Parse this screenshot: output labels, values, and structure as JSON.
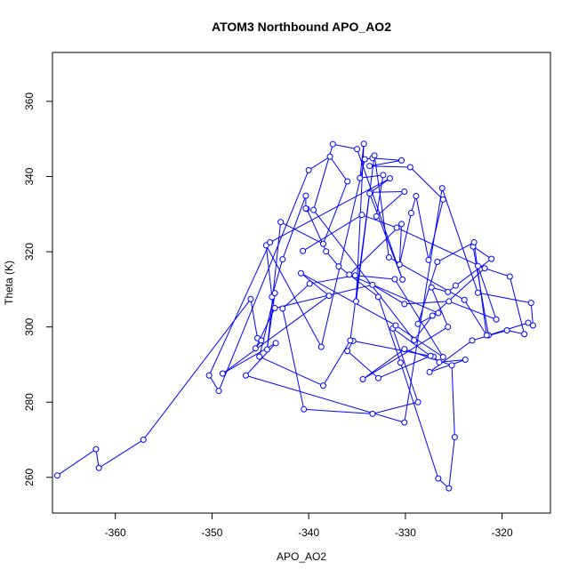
{
  "chart_data": {
    "type": "scatter",
    "title": "ATOM3 Northbound APO_AO2",
    "xlabel": "APO_AO2",
    "ylabel": "Theta (K)",
    "xlim": [
      -366.5,
      -315
    ],
    "ylim": [
      250.5,
      373
    ],
    "xticks": [
      -360,
      -350,
      -340,
      -330,
      -320
    ],
    "yticks": [
      260,
      280,
      300,
      320,
      340,
      360
    ],
    "connect_points": true,
    "grid": false,
    "color": "#0000ff",
    "series": [
      {
        "x": [
          -366,
          -362,
          -361.7,
          -357.1,
          -346,
          -345.3,
          -344.9,
          -345.5,
          -343.5,
          -333.4,
          -330.1,
          -325.5,
          -320.6,
          -322.5,
          -319.2,
          -317.7,
          -319.5,
          -323.1,
          -327.5,
          -323.8,
          -326.5,
          -327.1,
          -335.4,
          -336.0,
          -332.8,
          -327.4,
          -331.3,
          -328.7,
          -333.4,
          -340.5,
          -342.7,
          -339.9,
          -335.2,
          -331.1,
          -326.1,
          -331.0,
          -340.8,
          -337.9,
          -348.9,
          -343.4,
          -346.5,
          -330.1,
          -326.2,
          -322.5,
          -317.0,
          -316.8,
          -317.3,
          -321.4,
          -323.0,
          -321.1,
          -324.8,
          -325.6,
          -327.3,
          -325.6,
          -334.4,
          -330.1,
          -325.2,
          -324.9,
          -325.5,
          -326.6,
          -330.5,
          -332.8,
          -336.9,
          -338.2,
          -340.2,
          -340.3,
          -340.3,
          -342.7,
          -343.8,
          -344.4,
          -338.7,
          -334.2,
          -333.4,
          -330.4,
          -333.7,
          -329.5,
          -326.1,
          -327.6,
          -328.9,
          -329.4,
          -330.6,
          -330.4,
          -335.8,
          -326.6,
          -328.7,
          -326.7,
          -322.9,
          -321.6,
          -323.9,
          -331.7,
          -333.2,
          -335.7,
          -338.5,
          -345.1,
          -343.5,
          -344.3,
          -342.9,
          -338.5,
          -336.0,
          -337.8,
          -340.0,
          -349.3,
          -350.3,
          -344.0,
          -331.6,
          -333.6,
          -330.1,
          -333.0,
          -332.3,
          -334.7,
          -334.3,
          -335.1,
          -333.7,
          -330.3,
          -335.0,
          -337.5,
          -339.5,
          -329.1,
          -327.2,
          -321.8,
          -330.9,
          -334.5,
          -340.6
        ],
        "y": [
          260.5,
          267.5,
          262.5,
          270.0,
          307.4,
          297.0,
          296.4,
          294.3,
          305.0,
          311.2,
          306.1,
          306.8,
          302.0,
          316.2,
          313.4,
          298.1,
          299.1,
          296.4,
          288.0,
          291.3,
          290.6,
          292.1,
          296.3,
          293.6,
          286.4,
          292.3,
          299.6,
          280.0,
          276.9,
          278.1,
          304.9,
          311.5,
          313.7,
          312.7,
          292.0,
          300.4,
          314.3,
          308.3,
          287.6,
          295.7,
          287.1,
          274.6,
          336.9,
          309.1,
          306.4,
          300.4,
          301.1,
          297.8,
          321.4,
          318.1,
          311.0,
          309.3,
          310.5,
          300.0,
          286.1,
          294.1,
          289.8,
          270.7,
          257.1,
          259.7,
          290.5,
          308.0,
          316.1,
          320.1,
          331.4,
          331.5,
          334.9,
          318.0,
          308.0,
          321.7,
          294.7,
          344.6,
          344.9,
          344.3,
          342.8,
          342.5,
          333.9,
          317.8,
          334.8,
          330.3,
          316.6,
          327.4,
          313.9,
          303.7,
          300.8,
          317.3,
          322.5,
          297.8,
          307.2,
          318.5,
          345.6,
          296.4,
          284.4,
          292.1,
          309.0,
          294.0,
          327.9,
          322.1,
          338.7,
          345.3,
          341.7,
          283.0,
          287.1,
          322.5,
          339.5,
          335.8,
          336.0,
          329.4,
          340.4,
          339.6,
          348.7,
          306.8,
          335.5,
          312.6,
          347.3,
          348.6,
          331.1,
          296.5,
          303.0,
          315.6,
          326.4,
          329.8,
          320.2
        ]
      }
    ]
  }
}
